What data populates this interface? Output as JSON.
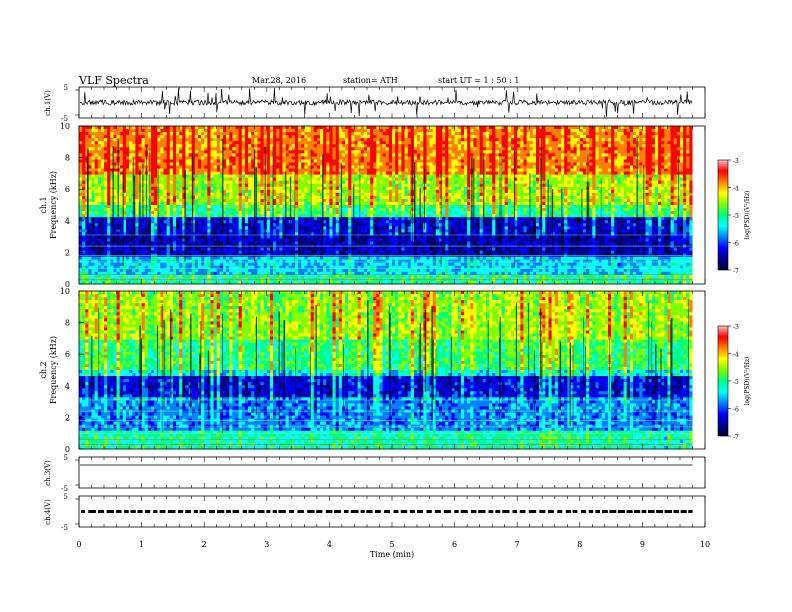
{
  "header": {
    "title": "VLF  Spectra",
    "date": "Mar.28, 2016",
    "station": "station= ATH",
    "start": "start  UT  =    1  : 50 : 1"
  },
  "chart_data": {
    "type": "heatmap",
    "xlabel": "Time  (min)",
    "xlim": [
      0,
      10
    ],
    "xticks": [
      "0",
      "1",
      "2",
      "3",
      "4",
      "5",
      "6",
      "7",
      "8",
      "9",
      "10"
    ],
    "data_end_min": 9.8,
    "panels": [
      {
        "kind": "waveform",
        "ylabel": "ch.1(V)",
        "ylim": [
          -5,
          5
        ],
        "ticks": [
          "5",
          "-5"
        ]
      },
      {
        "kind": "spectrogram",
        "ylabel_1": "ch.1",
        "ylabel_2": "Frequency  (kHz)",
        "ylim": [
          0,
          10
        ],
        "ticks": [
          "0",
          "2",
          "4",
          "6",
          "8",
          "10"
        ],
        "colorbar": {
          "label": "log(PSD)(V²/Hz)",
          "range": [
            -7,
            -3
          ],
          "ticks": [
            "-3",
            "-4",
            "-5",
            "-6",
            "-7"
          ]
        }
      },
      {
        "kind": "spectrogram",
        "ylabel_1": "ch.2",
        "ylabel_2": "Frequency  (kHz)",
        "ylim": [
          0,
          10
        ],
        "ticks": [
          "0",
          "2",
          "4",
          "6",
          "8",
          "10"
        ],
        "colorbar": {
          "label": "log(PSD)(V²/Hz)",
          "range": [
            -7,
            -3
          ],
          "ticks": [
            "-3",
            "-4",
            "-5",
            "-6",
            "-7"
          ]
        }
      },
      {
        "kind": "waveform",
        "ylabel": "ch.3(V)",
        "ylim": [
          -5,
          5
        ],
        "ticks": [
          "5",
          "-5"
        ]
      },
      {
        "kind": "waveform",
        "ylabel": "ch.4(V)",
        "ylim": [
          -5,
          5
        ],
        "ticks": [
          "5",
          "-5"
        ]
      }
    ],
    "colormap": [
      "#000030",
      "#00008b",
      "#0000ff",
      "#0080ff",
      "#00ffff",
      "#00ff80",
      "#80ff00",
      "#ffff00",
      "#ff8000",
      "#ff0000",
      "#ffc0c0"
    ]
  }
}
